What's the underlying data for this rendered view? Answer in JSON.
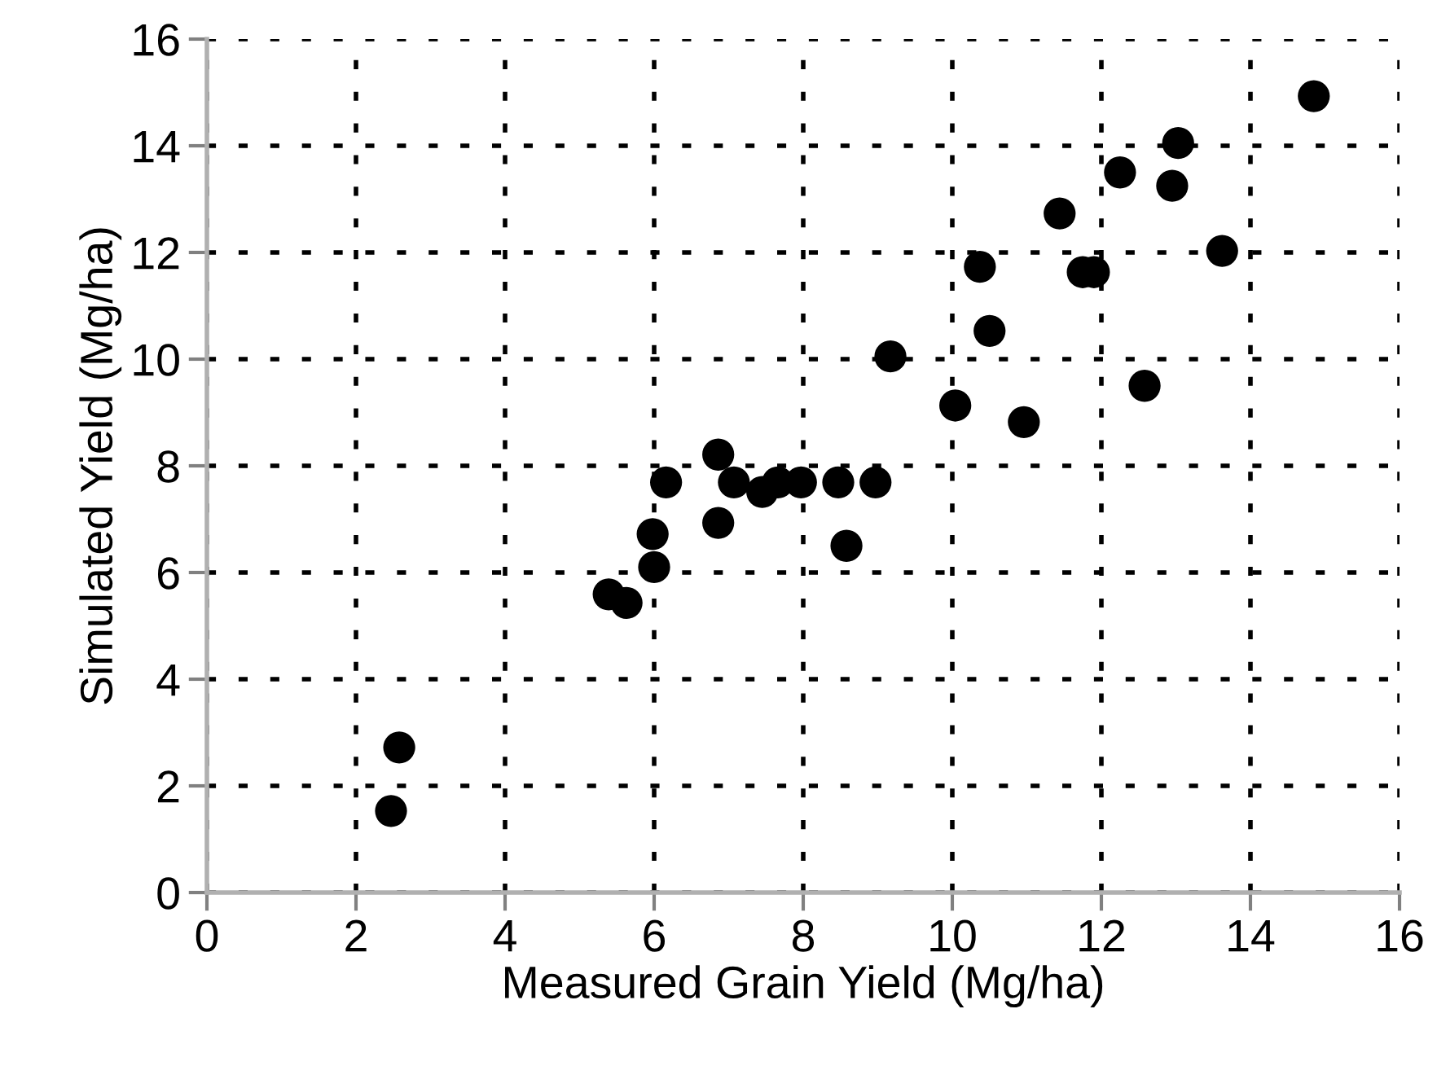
{
  "chart_data": {
    "type": "scatter",
    "xlabel": "Measured Grain Yield (Mg/ha)",
    "ylabel": "Simulated Yield (Mg/ha)",
    "x": [
      2.47,
      2.58,
      5.39,
      5.63,
      5.98,
      6.0,
      6.16,
      6.86,
      6.86,
      7.07,
      7.45,
      7.66,
      7.97,
      8.47,
      8.97,
      8.58,
      14.85,
      13.03,
      12.25,
      12.95,
      11.44,
      13.62,
      10.37,
      11.75,
      11.9,
      10.5,
      9.17,
      12.58,
      10.04,
      10.96
    ],
    "series": [
      {
        "color": "#000000",
        "values": [
          1.53,
          2.72,
          5.59,
          5.43,
          6.72,
          6.1,
          7.69,
          8.21,
          6.93,
          7.69,
          7.51,
          7.69,
          7.69,
          7.69,
          7.69,
          6.5,
          14.93,
          14.05,
          13.5,
          13.25,
          12.73,
          12.03,
          11.73,
          11.63,
          11.63,
          10.53,
          10.05,
          9.5,
          9.13,
          8.82
        ]
      }
    ],
    "xlim": [
      0,
      16
    ],
    "ylim": [
      0,
      16
    ],
    "xticks": [
      0,
      2,
      4,
      6,
      8,
      10,
      12,
      14,
      16
    ],
    "yticks": [
      0,
      2,
      4,
      6,
      8,
      10,
      12,
      14,
      16
    ],
    "grid": true,
    "marker": "circle",
    "legend": false
  }
}
